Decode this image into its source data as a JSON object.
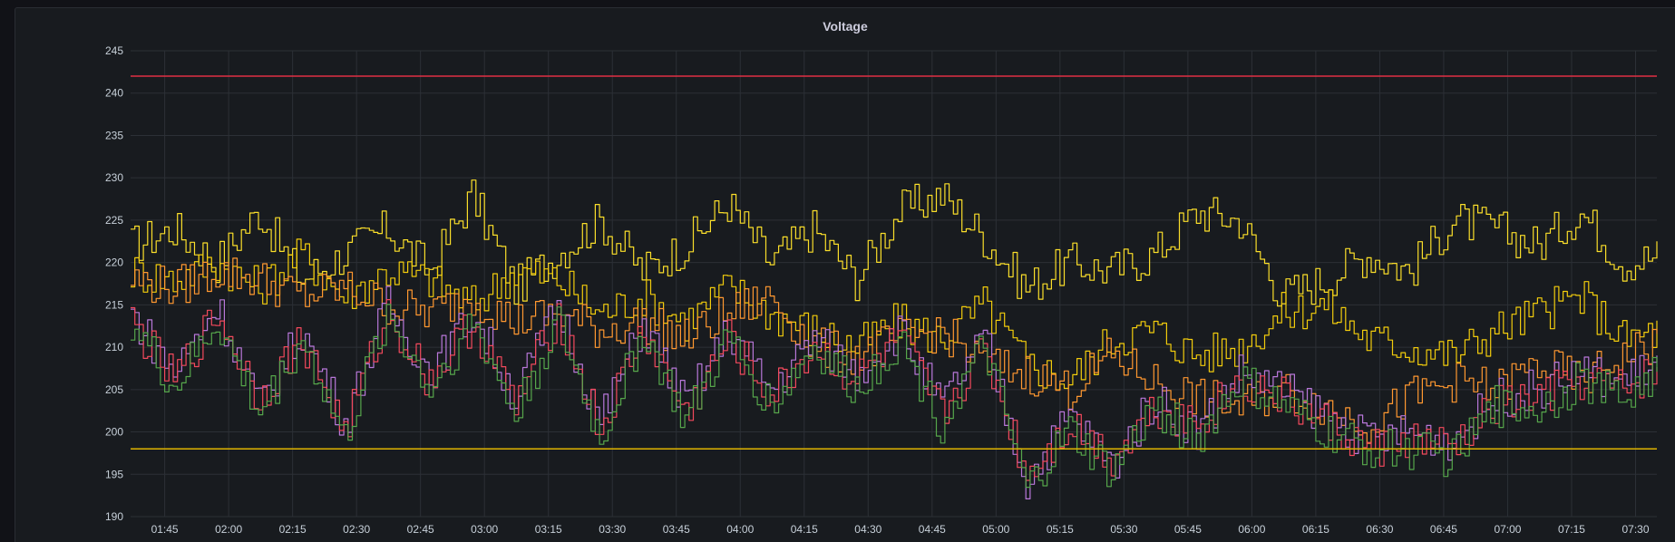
{
  "panel": {
    "title": "Voltage"
  },
  "chart_data": {
    "type": "line",
    "title": "Voltage",
    "xlabel": "",
    "ylabel": "",
    "ylim": [
      190,
      245
    ],
    "yticks": [
      190,
      195,
      200,
      205,
      210,
      215,
      220,
      225,
      230,
      235,
      240,
      245
    ],
    "xlim": [
      "01:37",
      "07:35"
    ],
    "xticks": [
      "01:45",
      "02:00",
      "02:15",
      "02:30",
      "02:45",
      "03:00",
      "03:15",
      "03:30",
      "03:45",
      "04:00",
      "04:15",
      "04:30",
      "04:45",
      "05:00",
      "05:15",
      "05:30",
      "05:45",
      "06:00",
      "06:15",
      "06:30",
      "06:45",
      "07:00",
      "07:15",
      "07:30"
    ],
    "grid": true,
    "thresholds": [
      {
        "value": 242,
        "color": "#e02f44"
      },
      {
        "value": 198,
        "color": "#e0b400"
      }
    ],
    "series": [
      {
        "color": "#fade2a",
        "sample_every_min": 10,
        "values": [
          222,
          224,
          220,
          226,
          218,
          221,
          224,
          219,
          228,
          217,
          221,
          225,
          219,
          222,
          227,
          220,
          224,
          218,
          226,
          228,
          223,
          217,
          220,
          219,
          221,
          226,
          225,
          216,
          218,
          221,
          219,
          225,
          224,
          222,
          226,
          220,
          221,
          227
        ]
      },
      {
        "color": "#f2cc0c",
        "sample_every_min": 10,
        "values": [
          219,
          218,
          220,
          217,
          221,
          216,
          219,
          218,
          215,
          219,
          218,
          214,
          216,
          213,
          217,
          214,
          212,
          210,
          213,
          211,
          215,
          208,
          206,
          211,
          212,
          209,
          210,
          214,
          215,
          211,
          210,
          209,
          212,
          214,
          216,
          211,
          212,
          215
        ]
      },
      {
        "color": "#ff9830",
        "sample_every_min": 10,
        "values": [
          218,
          217,
          219,
          218,
          216,
          217,
          215,
          214,
          216,
          213,
          214,
          212,
          213,
          211,
          214,
          216,
          210,
          209,
          211,
          212,
          208,
          207,
          205,
          209,
          206,
          204,
          203,
          205,
          203,
          201,
          204,
          206,
          205,
          208,
          206,
          209,
          211,
          212
        ]
      },
      {
        "color": "#b877d9",
        "sample_every_min": 10,
        "values": [
          214,
          207,
          215,
          203,
          212,
          201,
          215,
          207,
          214,
          204,
          215,
          201,
          213,
          203,
          212,
          205,
          211,
          207,
          212,
          203,
          211,
          194,
          202,
          196,
          204,
          200,
          207,
          205,
          202,
          199,
          200,
          199,
          204,
          205,
          207,
          206,
          209,
          203
        ]
      },
      {
        "color": "#f2495c",
        "sample_every_min": 10,
        "values": [
          213,
          206,
          214,
          204,
          211,
          200,
          214,
          206,
          213,
          203,
          214,
          200,
          212,
          202,
          211,
          204,
          210,
          206,
          211,
          202,
          210,
          195,
          201,
          197,
          203,
          201,
          206,
          204,
          201,
          198,
          199,
          198,
          203,
          204,
          206,
          205,
          208,
          202
        ]
      },
      {
        "color": "#56a64b",
        "sample_every_min": 10,
        "values": [
          213,
          205,
          213,
          202,
          211,
          199,
          214,
          205,
          213,
          202,
          213,
          199,
          212,
          201,
          211,
          203,
          210,
          205,
          211,
          201,
          210,
          193,
          200,
          195,
          203,
          199,
          206,
          203,
          200,
          198,
          198,
          197,
          203,
          203,
          206,
          204,
          208,
          201
        ]
      }
    ]
  }
}
